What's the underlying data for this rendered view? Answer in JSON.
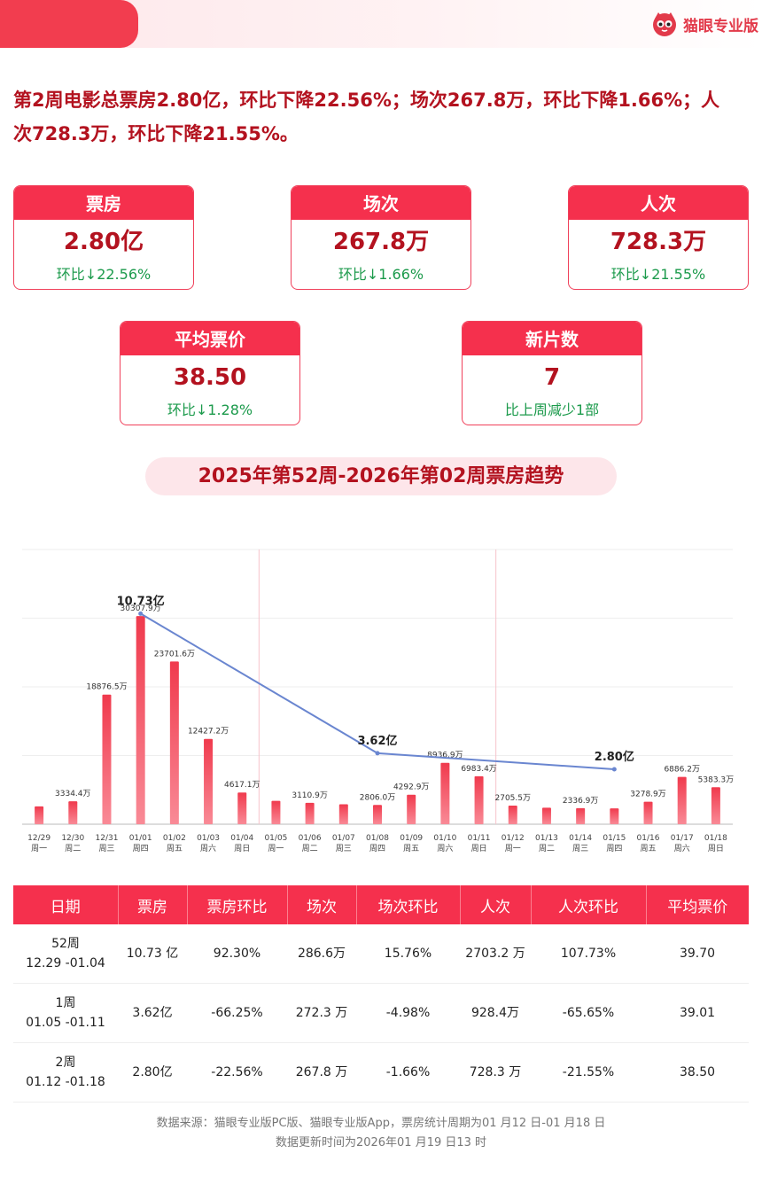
{
  "brand": {
    "name": "猫眼专业版"
  },
  "headline": "第2周电影总票房2.80亿，环比下降22.56%；场次267.8万，环比下降1.66%；人次728.3万，环比下降21.55%。",
  "cards": [
    {
      "title": "票房",
      "value": "2.80亿",
      "sub": "环比↓22.56%"
    },
    {
      "title": "场次",
      "value": "267.8万",
      "sub": "环比↓1.66%"
    },
    {
      "title": "人次",
      "value": "728.3万",
      "sub": "环比↓21.55%"
    },
    {
      "title": "平均票价",
      "value": "38.50",
      "sub": "环比↓1.28%"
    },
    {
      "title": "新片数",
      "value": "7",
      "sub": "比上周减少1部"
    }
  ],
  "section_title": "2025年第52周-2026年第02周票房趋势",
  "chart_data": {
    "type": "bar",
    "categories": [
      "12/29",
      "12/30",
      "12/31",
      "01/01",
      "01/02",
      "01/03",
      "01/04",
      "01/05",
      "01/06",
      "01/07",
      "01/08",
      "01/09",
      "01/10",
      "01/11",
      "01/12",
      "01/13",
      "01/14",
      "01/15",
      "01/16",
      "01/17",
      "01/18"
    ],
    "weekdays": [
      "周一",
      "周二",
      "周三",
      "周四",
      "周五",
      "周六",
      "周日",
      "周一",
      "周二",
      "周三",
      "周四",
      "周五",
      "周六",
      "周日",
      "周一",
      "周二",
      "周三",
      "周四",
      "周五",
      "周六",
      "周日"
    ],
    "series": [
      {
        "values": [
          2600,
          3334.4,
          18876.5,
          30307.9,
          23701.6,
          12427.2,
          4617.1,
          3400,
          3110.9,
          2900,
          2806.0,
          4292.9,
          8936.9,
          6983.4,
          2705.5,
          2400,
          2336.9,
          2300,
          3278.9,
          6886.2,
          5383.3
        ]
      }
    ],
    "data_labels": [
      "",
      "3334.4万",
      "18876.5万",
      "30307.9万",
      "23701.6万",
      "12427.2万",
      "4617.1万",
      "",
      "3110.9万",
      "",
      "2806.0万",
      "4292.9万",
      "8936.9万",
      "6983.4万",
      "2705.5万",
      "",
      "2336.9万",
      "",
      "3278.9万",
      "6886.2万",
      "5383.3万"
    ],
    "weekly_line": [
      {
        "x": "01/01",
        "value": 10.73,
        "label": "10.73亿"
      },
      {
        "x": "01/08",
        "value": 3.62,
        "label": "3.62亿"
      },
      {
        "x": "01/15",
        "value": 2.8,
        "label": "2.80亿"
      }
    ],
    "week_dividers_after": [
      "01/04",
      "01/11"
    ],
    "ylim": [
      0,
      40000
    ],
    "bar_color": "#f03a4d",
    "line_color": "#6a86d0"
  },
  "table": {
    "headers": [
      "日期",
      "票房",
      "票房环比",
      "场次",
      "场次环比",
      "人次",
      "人次环比",
      "平均票价"
    ],
    "rows": [
      {
        "week": "52周",
        "range": "12.29 -01.04",
        "box": "10.73 亿",
        "box_chg": "92.30%",
        "shows": "286.6万",
        "shows_chg": "15.76%",
        "adm": "2703.2 万",
        "adm_chg": "107.73%",
        "price": "39.70"
      },
      {
        "week": "1周",
        "range": "01.05 -01.11",
        "box": "3.62亿",
        "box_chg": "-66.25%",
        "shows": "272.3 万",
        "shows_chg": "-4.98%",
        "adm": "928.4万",
        "adm_chg": "-65.65%",
        "price": "39.01"
      },
      {
        "week": "2周",
        "range": "01.12 -01.18",
        "box": "2.80亿",
        "box_chg": "-22.56%",
        "shows": "267.8 万",
        "shows_chg": "-1.66%",
        "adm": "728.3 万",
        "adm_chg": "-21.55%",
        "price": "38.50"
      }
    ]
  },
  "footer": {
    "line1": "数据来源：猫眼专业版PC版、猫眼专业版App，票房统计周期为01 月12 日-01 月18 日",
    "line2": "数据更新时间为2026年01 月19 日13 时"
  }
}
